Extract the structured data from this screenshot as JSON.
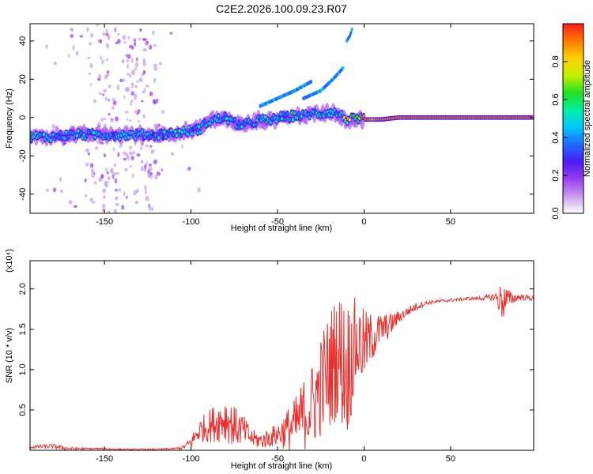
{
  "chart_data": [
    {
      "type": "heatmap",
      "title": "C2E2.2026.100.09.23.R07",
      "xlabel": "Height of straight line (km)",
      "ylabel": "Frequency (Hz)",
      "xlim": [
        -193,
        98
      ],
      "ylim": [
        -50,
        49
      ],
      "xticks": [
        -150,
        -100,
        -50,
        0,
        50
      ],
      "yticks": [
        -40,
        -20,
        0,
        20,
        40
      ],
      "colorbar": {
        "label": "Normalized spectral amplitude",
        "range": [
          0,
          1
        ],
        "ticks": [
          "0.0",
          "0.2",
          "0.4",
          "0.6",
          "0.8"
        ],
        "colors": [
          "#ffffff",
          "#c89bf0",
          "#9a3cf0",
          "#4b1df5",
          "#1f6cff",
          "#00c8ff",
          "#00f0a0",
          "#22e022",
          "#c8f000",
          "#ffd000",
          "#ff7a00",
          "#ff1a1a"
        ]
      },
      "ridge": {
        "x": [
          -193,
          -180,
          -170,
          -160,
          -150,
          -140,
          -130,
          -120,
          -110,
          -100,
          -95,
          -90,
          -85,
          -80,
          -75,
          -70,
          -65,
          -60,
          -55,
          -50,
          -45,
          -40,
          -35,
          -30,
          -25,
          -20,
          -15,
          -10,
          -5,
          0,
          5,
          10,
          20,
          30,
          40,
          50,
          60,
          70,
          80,
          90,
          98
        ],
        "freq": [
          -10,
          -10,
          -9,
          -9,
          -9,
          -9,
          -9,
          -9,
          -8,
          -7,
          -6,
          -2,
          -1,
          0,
          -3,
          -4,
          -3,
          -1,
          -2,
          0,
          0,
          1,
          1,
          2,
          2,
          3,
          2,
          -1,
          -1,
          -1,
          -1,
          -1,
          0,
          0,
          0,
          0,
          0,
          0,
          0,
          0,
          0
        ],
        "amp": [
          0.55,
          0.55,
          0.55,
          0.5,
          0.5,
          0.5,
          0.5,
          0.5,
          0.5,
          0.5,
          0.5,
          0.5,
          0.55,
          0.55,
          0.55,
          0.55,
          0.5,
          0.55,
          0.55,
          0.5,
          0.55,
          0.55,
          0.5,
          0.5,
          0.55,
          0.5,
          0.5,
          0.7,
          0.85,
          0.9,
          0.85,
          0.9,
          0.95,
          0.95,
          0.95,
          0.95,
          0.95,
          0.95,
          0.95,
          0.95,
          0.95
        ]
      },
      "harmonics": [
        {
          "x": [
            -60,
            -50,
            -40,
            -30
          ],
          "freq": [
            6,
            10,
            14,
            19
          ]
        },
        {
          "x": [
            -35,
            -25,
            -18,
            -12
          ],
          "freq": [
            10,
            14,
            20,
            26
          ]
        },
        {
          "x": [
            -10,
            -8,
            -7
          ],
          "freq": [
            40,
            43,
            46
          ]
        }
      ]
    },
    {
      "type": "line",
      "xlabel": "Height of straight line (km)",
      "ylabel": "SNR (10 * v/v)",
      "yscale_label": "(x10⁴)",
      "xlim": [
        -193,
        98
      ],
      "ylim": [
        0,
        2.35
      ],
      "xticks": [
        -150,
        -100,
        -50,
        0,
        50
      ],
      "yticks": [
        0.5,
        1.0,
        1.5,
        2.0
      ],
      "ytick_labels": [
        "0.5",
        "1.0",
        "1.5",
        "2.0"
      ],
      "color": "#e8302e",
      "series": [
        {
          "name": "SNR",
          "x": [
            -193,
            -180,
            -170,
            -160,
            -150,
            -140,
            -130,
            -120,
            -110,
            -105,
            -100,
            -95,
            -90,
            -85,
            -80,
            -75,
            -70,
            -65,
            -60,
            -55,
            -50,
            -45,
            -40,
            -35,
            -30,
            -25,
            -20,
            -15,
            -10,
            -5,
            0,
            5,
            10,
            15,
            20,
            25,
            30,
            35,
            40,
            45,
            50,
            55,
            60,
            65,
            70,
            75,
            80,
            85,
            90,
            98
          ],
          "y": [
            0.04,
            0.05,
            0.02,
            0.02,
            0.02,
            0.01,
            0.01,
            0.01,
            0.02,
            0.03,
            0.1,
            0.25,
            0.3,
            0.35,
            0.4,
            0.3,
            0.25,
            0.15,
            0.12,
            0.15,
            0.2,
            0.25,
            0.3,
            0.45,
            0.55,
            0.8,
            1.0,
            1.2,
            1.0,
            1.3,
            1.3,
            1.4,
            1.5,
            1.55,
            1.65,
            1.72,
            1.78,
            1.82,
            1.84,
            1.85,
            1.86,
            1.87,
            1.88,
            1.88,
            1.89,
            1.9,
            1.85,
            1.88,
            1.9,
            1.88
          ],
          "noise": [
            0.02,
            0.03,
            0.02,
            0.01,
            0.01,
            0.01,
            0.01,
            0.01,
            0.01,
            0.02,
            0.08,
            0.15,
            0.2,
            0.25,
            0.3,
            0.25,
            0.2,
            0.12,
            0.1,
            0.12,
            0.15,
            0.25,
            0.35,
            0.45,
            0.55,
            0.65,
            0.75,
            0.8,
            0.9,
            0.6,
            0.45,
            0.3,
            0.2,
            0.15,
            0.08,
            0.06,
            0.05,
            0.03,
            0.02,
            0.02,
            0.02,
            0.02,
            0.02,
            0.02,
            0.03,
            0.05,
            0.25,
            0.08,
            0.04,
            0.03
          ]
        }
      ]
    }
  ]
}
